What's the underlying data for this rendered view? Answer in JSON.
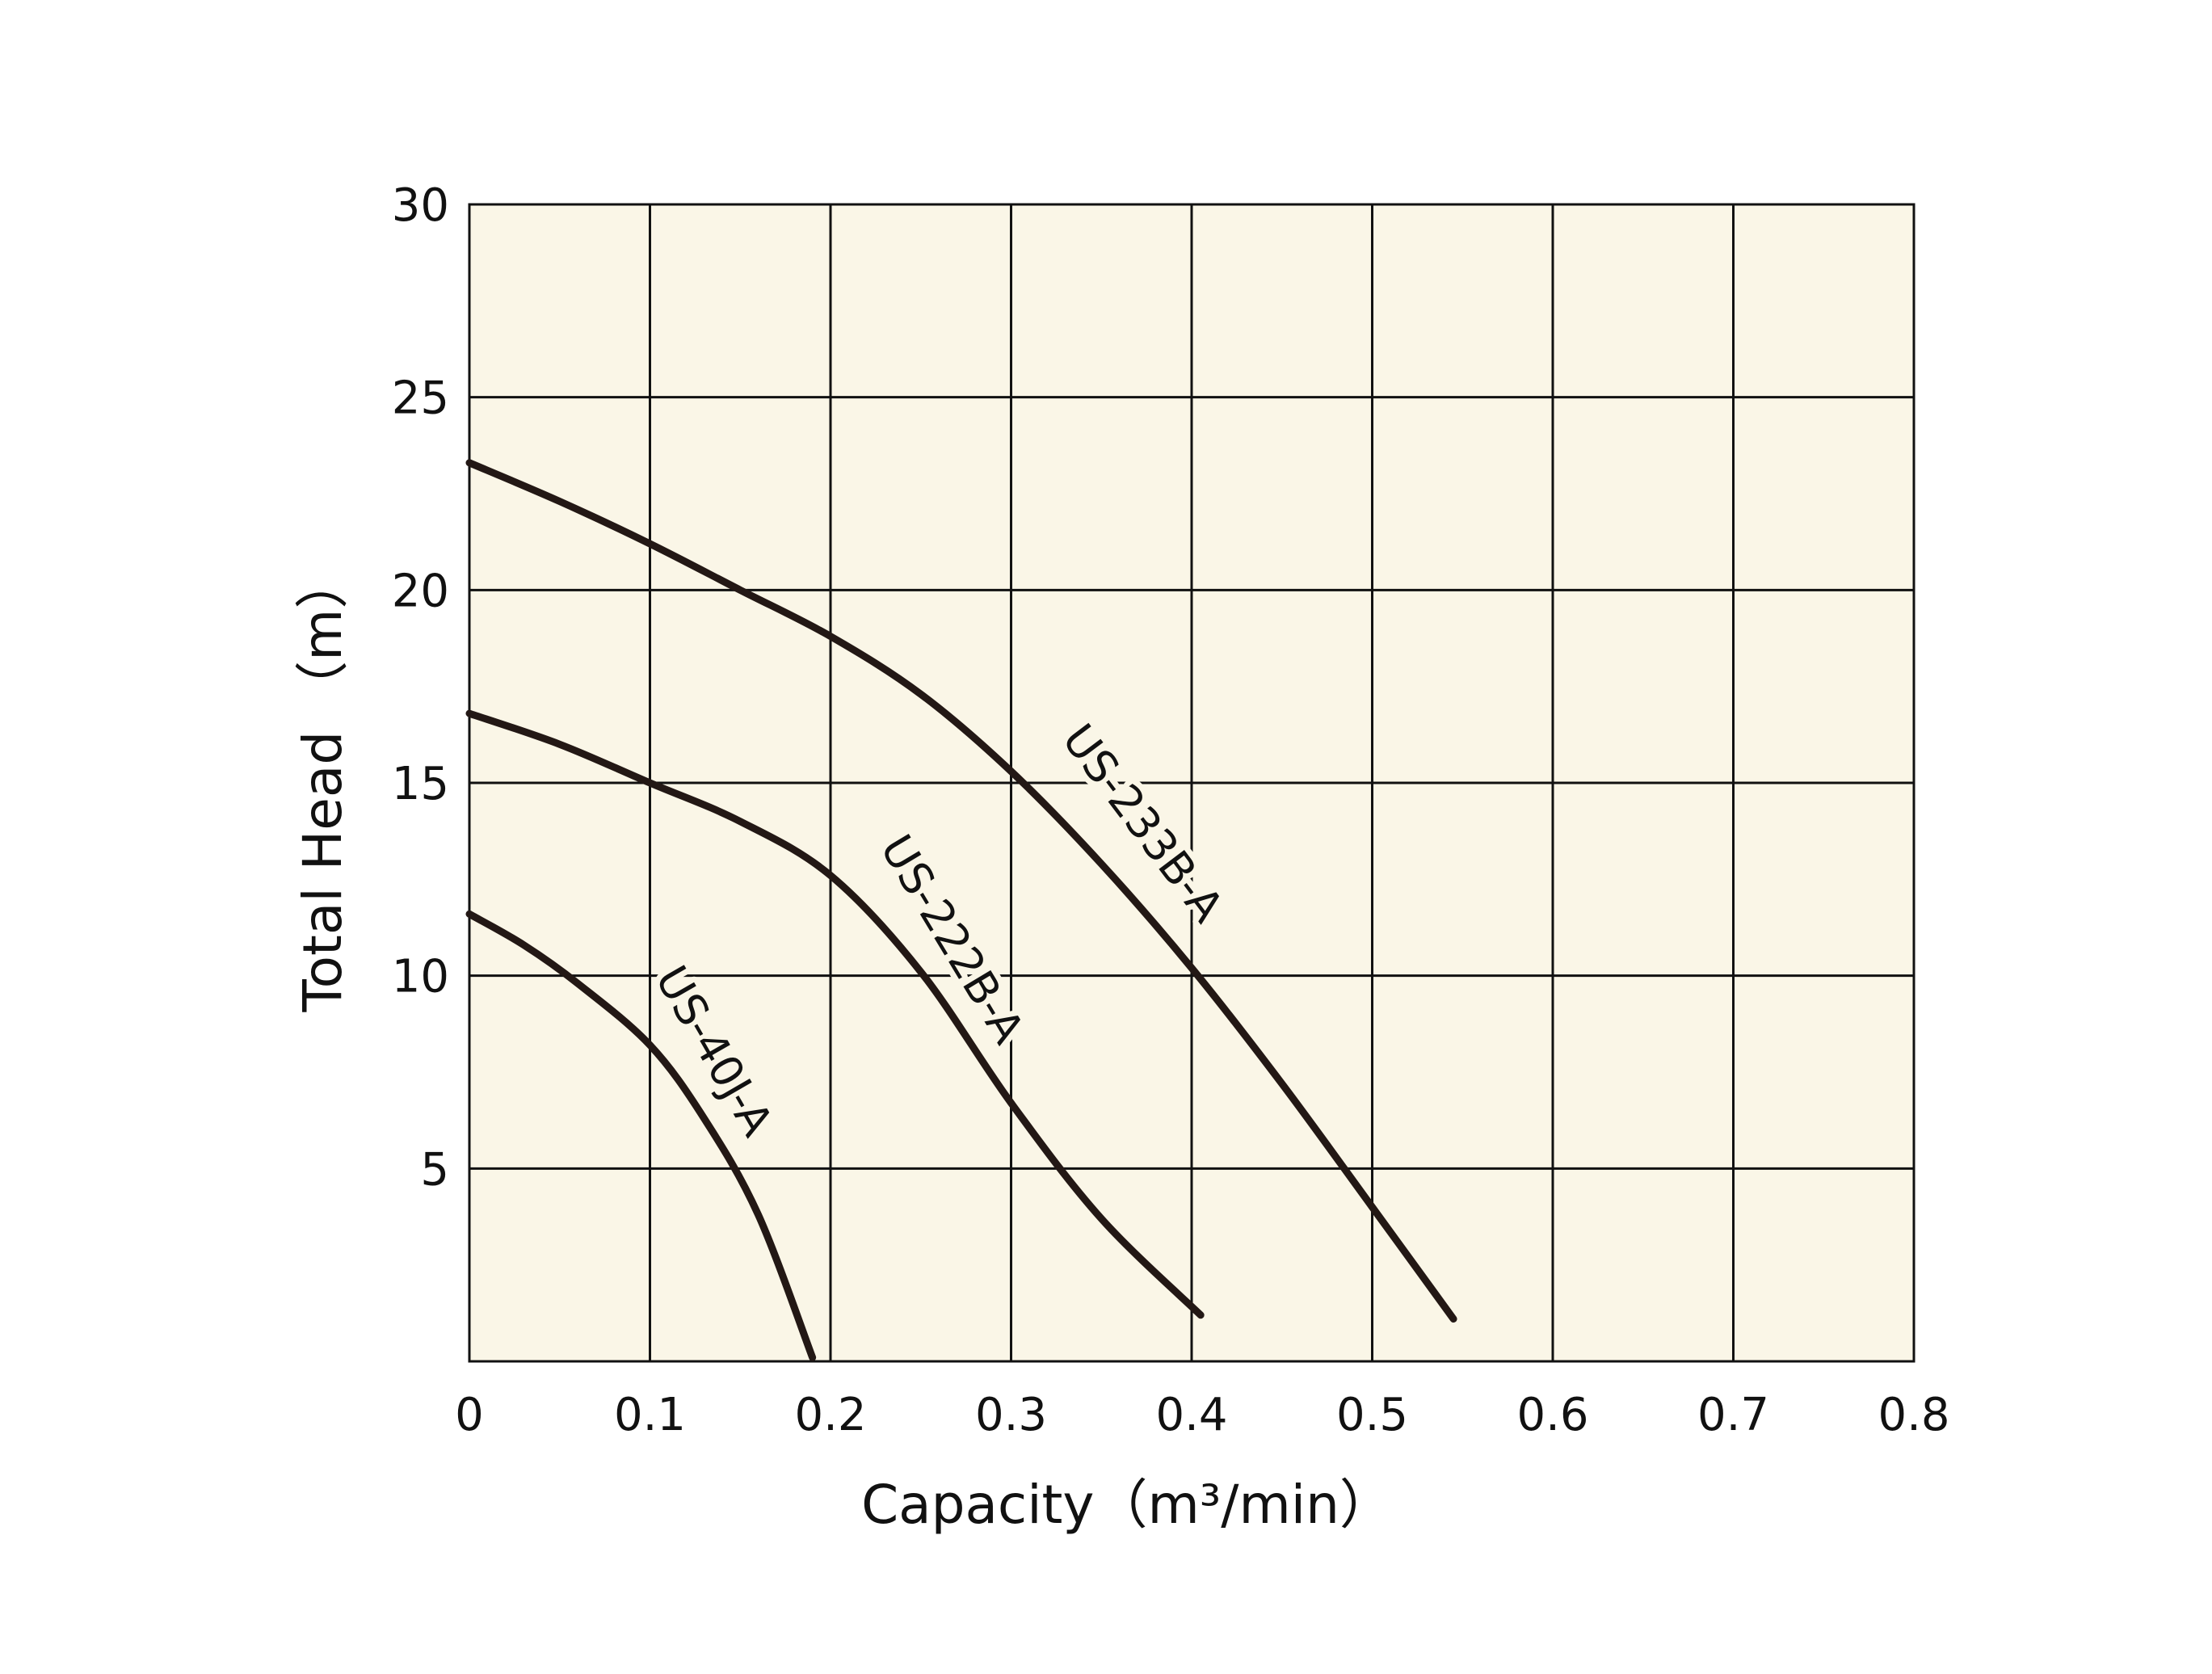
{
  "chart_data": {
    "type": "line",
    "title": "",
    "xlabel": "Capacity（m³/min）",
    "ylabel": "Total Head （m）",
    "xlim": [
      0,
      0.8
    ],
    "ylim": [
      0,
      30
    ],
    "grid": true,
    "x_ticks": [
      "0",
      "0.1",
      "0.2",
      "0.3",
      "0.4",
      "0.5",
      "0.6",
      "0.7",
      "0.8"
    ],
    "y_ticks": [
      "5",
      "10",
      "15",
      "20",
      "25",
      "30"
    ],
    "series": [
      {
        "name": "US-233B-A",
        "x": [
          0,
          0.05,
          0.1,
          0.15,
          0.2,
          0.25,
          0.3,
          0.35,
          0.4,
          0.45,
          0.5,
          0.545
        ],
        "y": [
          23.3,
          22.3,
          21.2,
          20.0,
          18.8,
          17.3,
          15.3,
          12.9,
          10.2,
          7.2,
          4.0,
          1.1
        ]
      },
      {
        "name": "US-222B-A",
        "x": [
          0,
          0.05,
          0.1,
          0.15,
          0.2,
          0.25,
          0.3,
          0.35,
          0.405
        ],
        "y": [
          16.8,
          16.0,
          15.0,
          14.0,
          12.6,
          10.1,
          6.7,
          3.7,
          1.2
        ]
      },
      {
        "name": "US-40J-A",
        "x": [
          0,
          0.03,
          0.06,
          0.1,
          0.13,
          0.16,
          0.19
        ],
        "y": [
          11.6,
          10.8,
          9.8,
          8.2,
          6.3,
          3.8,
          0.1
        ]
      }
    ],
    "colors": {
      "line": "#231815",
      "plot_bg": "#faf6e7",
      "grid": "#111111"
    }
  }
}
